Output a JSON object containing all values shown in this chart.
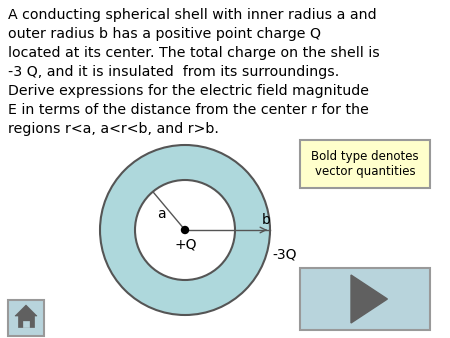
{
  "background_color": "#ffffff",
  "text_lines": [
    "A conducting spherical shell with inner radius a and",
    "outer radius b has a positive point charge Q",
    "located at its center. The total charge on the shell is",
    "-3 Q, and it is insulated  from its surroundings.",
    "Derive expressions for the electric field magnitude",
    "E in terms of the distance from the center r for the",
    "regions r<a, a<r<b, and r>b."
  ],
  "text_fontsize": 10.2,
  "shell_fill_color": "#aed8dc",
  "shell_edge_color": "#555555",
  "inner_fill_color": "#ffffff",
  "note_box_text": "Bold type denotes\nvector quantities",
  "note_box_fill": "#ffffcc",
  "note_box_edge": "#999999",
  "play_button_fill": "#b8d4dc",
  "play_triangle_color": "#606060",
  "home_button_fill": "#b8d4dc"
}
